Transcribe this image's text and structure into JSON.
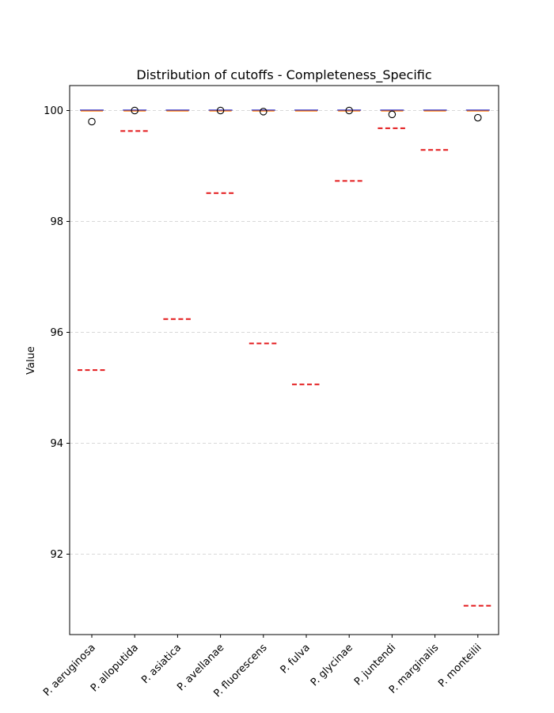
{
  "chart_data": {
    "type": "box",
    "title": "Distribution of cutoffs - Completeness_Specific",
    "xlabel": "",
    "ylabel": "Value",
    "ylim": [
      90.55,
      100.45
    ],
    "yticks": [
      92,
      94,
      96,
      98,
      100
    ],
    "grid": "y-dashed",
    "categories": [
      "P. aeruginosa",
      "P. alloputida",
      "P. asiatica",
      "P. avellanae",
      "P. fluorescens",
      "P. fulva",
      "P. glycinae",
      "P. juntendi",
      "P. marginalis",
      "P. monteilii"
    ],
    "median": [
      100,
      100,
      100,
      100,
      100,
      100,
      100,
      100,
      100,
      100
    ],
    "outliers": [
      [
        99.8
      ],
      [
        100.0
      ],
      [],
      [
        100.0
      ],
      [
        99.98
      ],
      [],
      [
        100.0
      ],
      [
        99.93
      ],
      [],
      [
        99.87
      ]
    ],
    "cutoff_lines": [
      95.32,
      99.63,
      96.24,
      98.51,
      95.8,
      95.06,
      98.73,
      99.68,
      99.29,
      91.07
    ],
    "colors": {
      "box": "#1f1fbf",
      "median": "#ff7f0e",
      "cutoff": "#e31a1c",
      "grid": "#cccccc",
      "outlier_edge": "#000000"
    }
  }
}
